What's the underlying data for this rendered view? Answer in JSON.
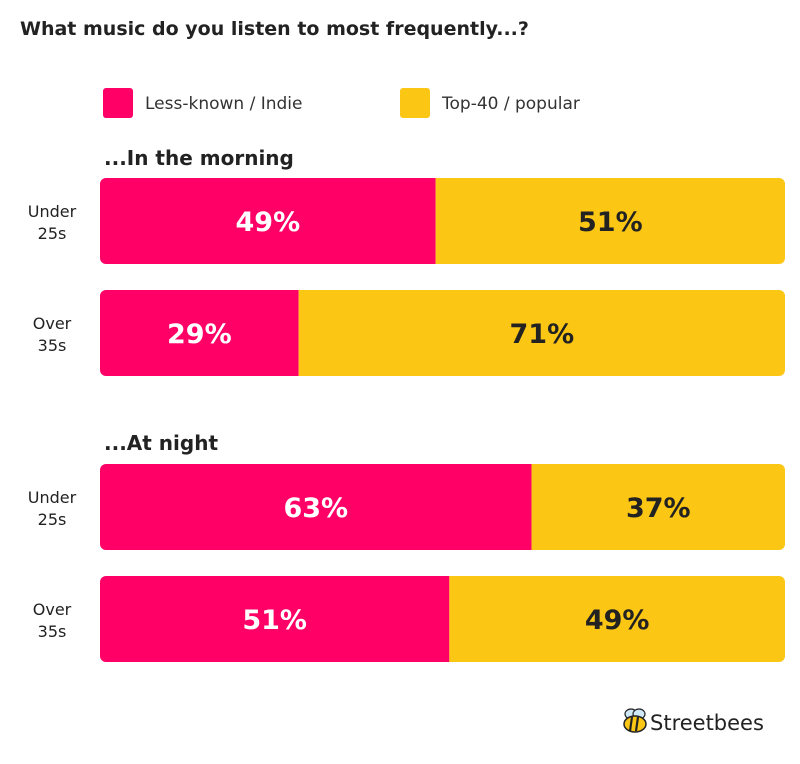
{
  "chart_data": {
    "type": "bar",
    "orientation": "horizontal",
    "stacked": true,
    "title": "What music do you listen to most frequently...?",
    "legend": [
      {
        "name": "Less-known / Indie",
        "color": "#FF0066"
      },
      {
        "name": "Top-40 / popular",
        "color": "#FCC614"
      }
    ],
    "legend_position": "top",
    "xlim": [
      0,
      100
    ],
    "unit": "%",
    "groups": [
      {
        "title": "...In the morning",
        "rows": [
          {
            "label": [
              "Under",
              "25s"
            ],
            "values": [
              49,
              51
            ],
            "value_labels": [
              "49%",
              "51%"
            ]
          },
          {
            "label": [
              "Over",
              "35s"
            ],
            "values": [
              29,
              71
            ],
            "value_labels": [
              "29%",
              "71%"
            ]
          }
        ]
      },
      {
        "title": "...At night",
        "rows": [
          {
            "label": [
              "Under",
              "25s"
            ],
            "values": [
              63,
              37
            ],
            "value_labels": [
              "63%",
              "37%"
            ]
          },
          {
            "label": [
              "Over",
              "35s"
            ],
            "values": [
              51,
              49
            ],
            "value_labels": [
              "51%",
              "49%"
            ]
          }
        ]
      }
    ],
    "value_label_colors": [
      "#FFFFFF",
      "#222222"
    ]
  },
  "branding": {
    "name": "Streetbees",
    "icon": "bee-icon"
  }
}
